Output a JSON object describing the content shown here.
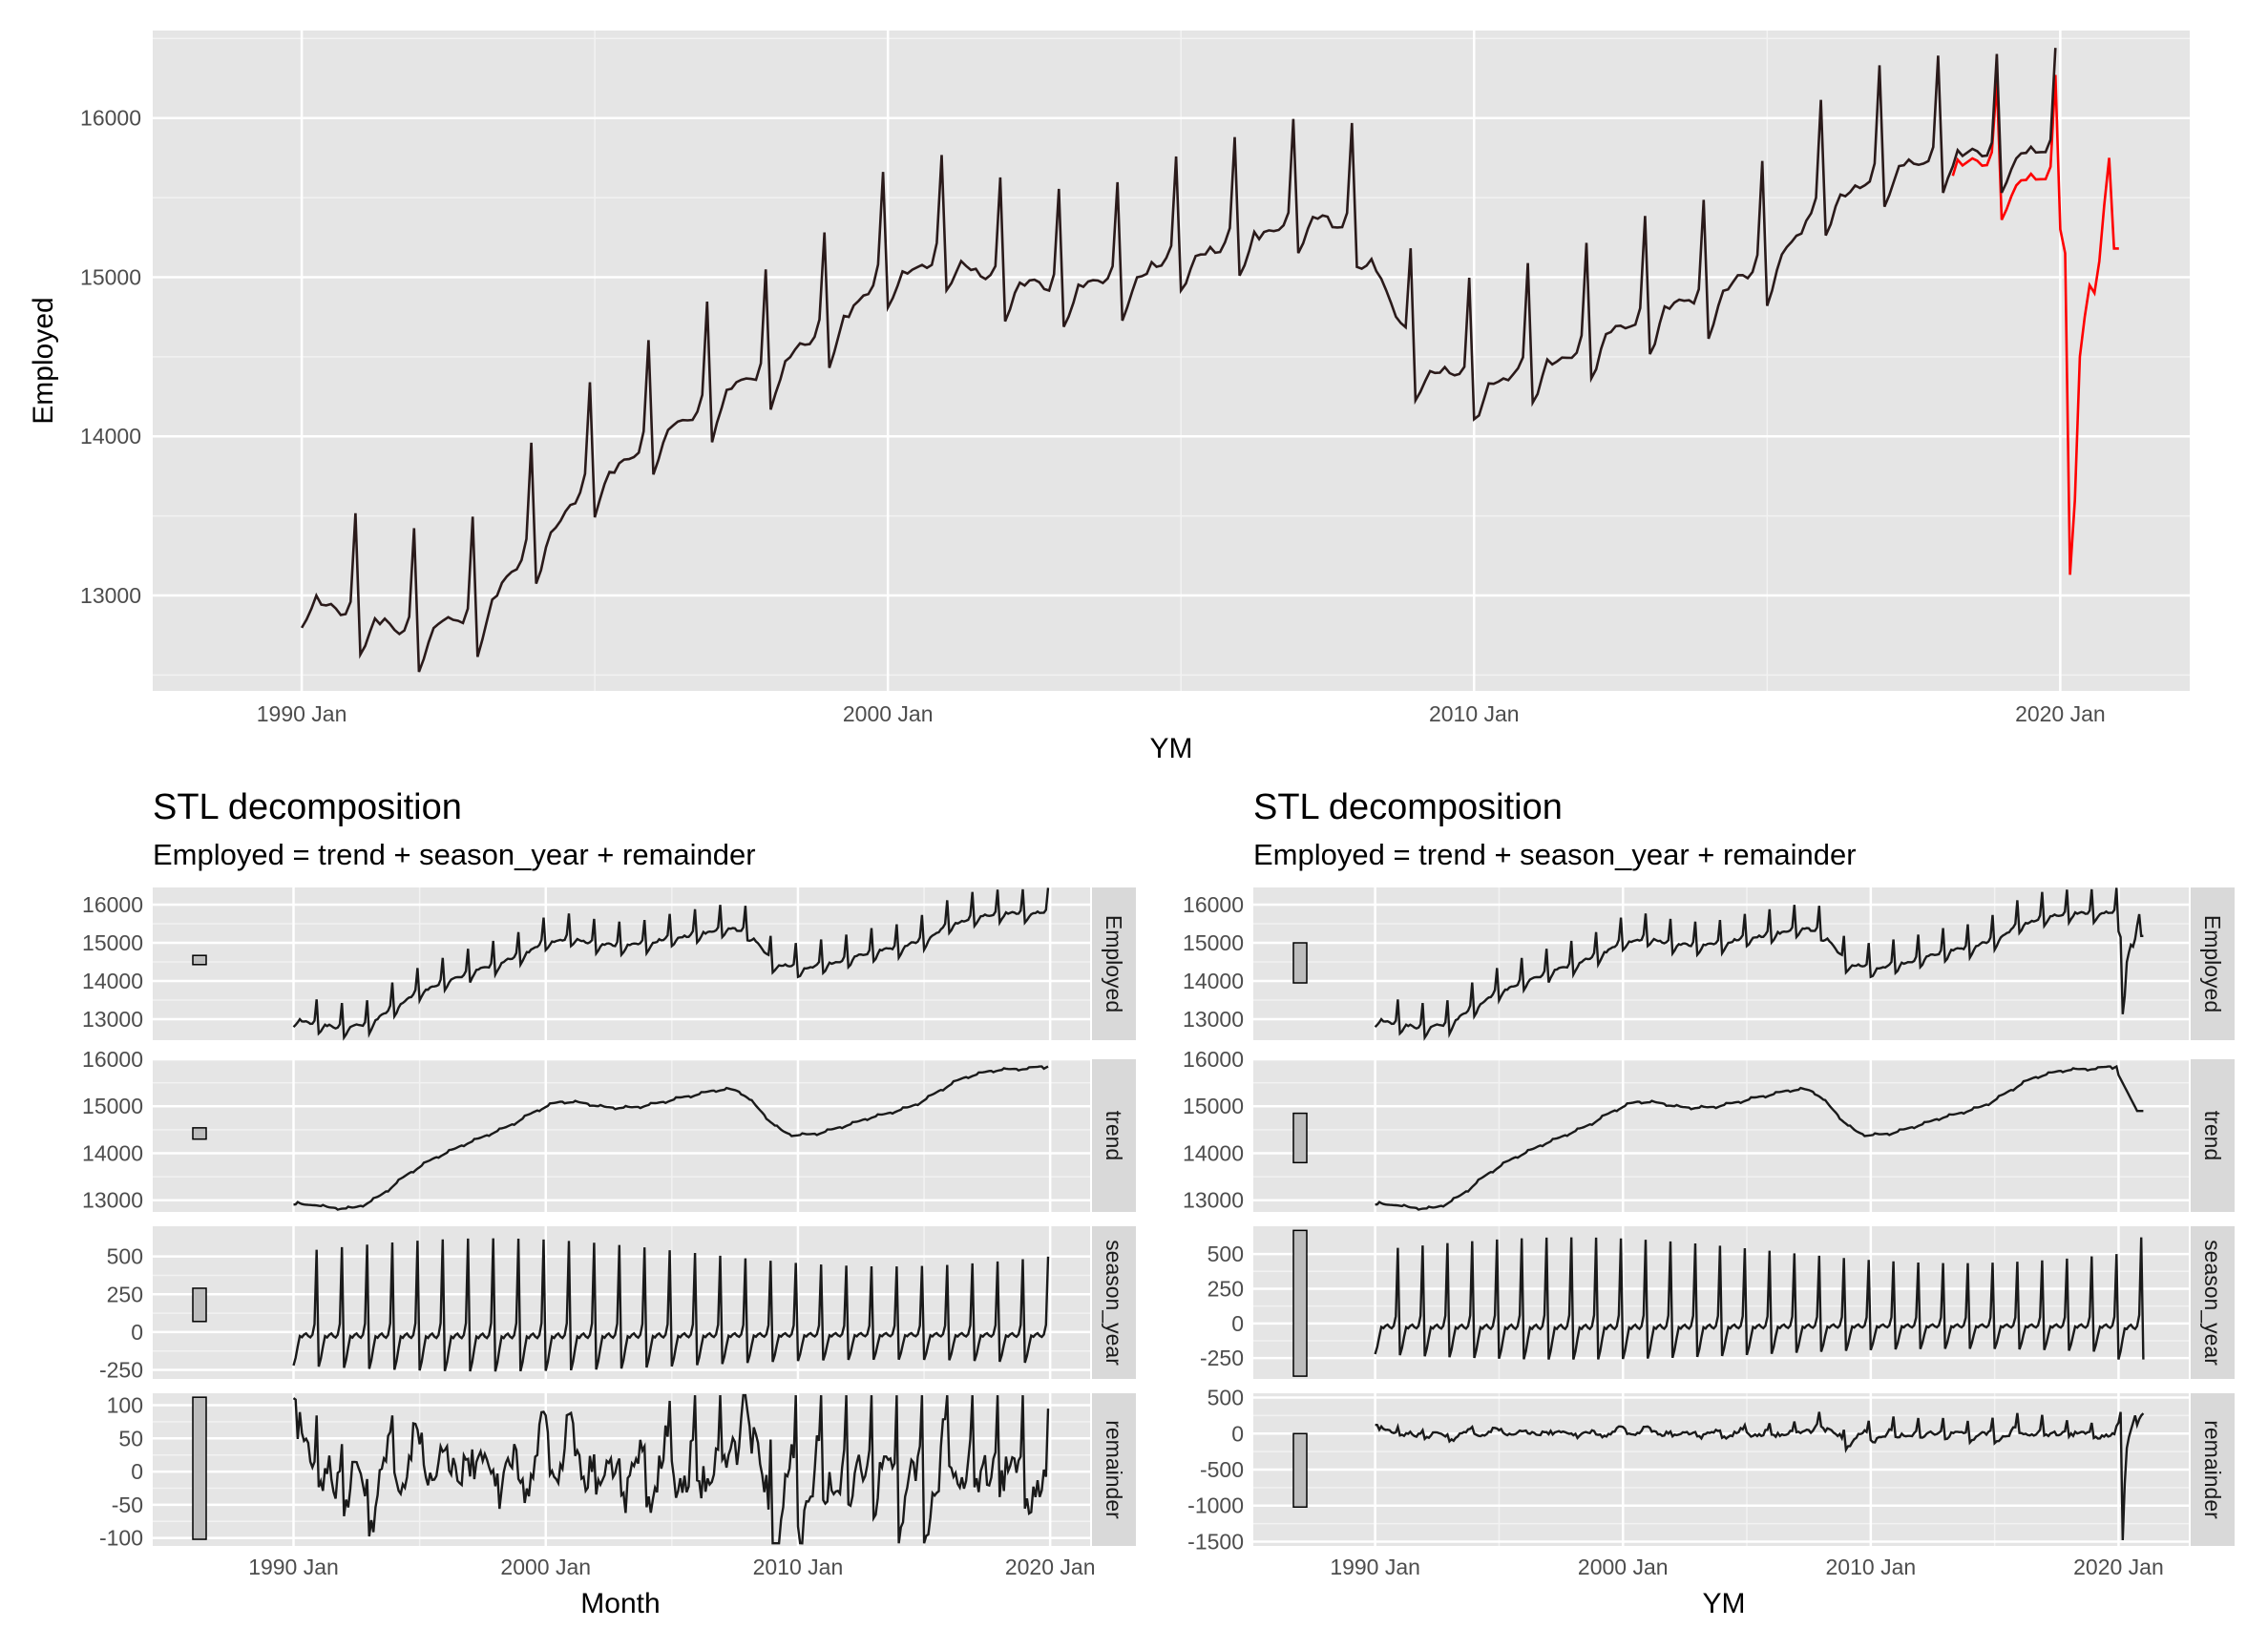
{
  "chart_data": [
    {
      "type": "line",
      "title": "",
      "xlabel": "YM",
      "ylabel": "Employed",
      "x_tick_labels": [
        "1990 Jan",
        "2000 Jan",
        "2010 Jan",
        "2020 Jan"
      ],
      "y_ticks": [
        13000,
        14000,
        15000,
        16000
      ],
      "y_tick_labels": [
        "13000",
        "14000",
        "15000",
        "16000"
      ],
      "ylim": [
        12400,
        16550
      ],
      "xlim": [
        "1987-06",
        "2022-03"
      ],
      "grid": true,
      "colors": {
        "panel_bg": "#e5e5e5",
        "black_series": "#2a1a1a",
        "red_series": "#ff0000",
        "text": "#4d4d4d"
      },
      "series": [
        {
          "color": "#2a1a1a",
          "x_start": "1990-01",
          "x_end": "2019-12",
          "data_ref": "employed_1990_2019"
        },
        {
          "color": "#ff0000",
          "x_start": "2018-03",
          "x_end": "2021-01",
          "data_ref": "employed_2018_2021"
        }
      ]
    },
    {
      "type": "line",
      "title": "STL decomposition",
      "subtitle": "Employed = trend + season_year + remainder",
      "xlabel": "Month",
      "x_tick_labels": [
        "1990 Jan",
        "2000 Jan",
        "2010 Jan",
        "2020 Jan"
      ],
      "x_range": [
        "1990-01",
        "2019-12"
      ],
      "facets": [
        {
          "strip": "Employed",
          "y_ticks": [
            13000,
            14000,
            15000,
            16000
          ],
          "y_tick_labels": [
            "13000",
            "14000",
            "15000",
            "16000"
          ],
          "ylim": [
            12450,
            16450
          ],
          "scale_bar": [
            14430,
            14670
          ]
        },
        {
          "strip": "trend",
          "y_ticks": [
            13000,
            14000,
            15000,
            16000
          ],
          "y_tick_labels": [
            "13000",
            "14000",
            "15000",
            "16000"
          ],
          "ylim": [
            12750,
            16000
          ],
          "scale_bar": [
            14300,
            14540
          ]
        },
        {
          "strip": "season_year",
          "y_ticks": [
            -250,
            0,
            250,
            500
          ],
          "y_tick_labels": [
            "-250",
            "0",
            "250",
            "500"
          ],
          "ylim": [
            -310,
            700
          ],
          "scale_bar": [
            70,
            290
          ]
        },
        {
          "strip": "remainder",
          "y_ticks": [
            -100,
            -50,
            0,
            50,
            100
          ],
          "y_tick_labels": [
            "-100",
            "-50",
            "0",
            "50",
            "100"
          ],
          "ylim": [
            -112,
            118
          ],
          "scale_bar": [
            -102,
            112
          ]
        }
      ]
    },
    {
      "type": "line",
      "title": "STL decomposition",
      "subtitle": "Employed = trend + season_year + remainder",
      "xlabel": "YM",
      "x_tick_labels": [
        "1990 Jan",
        "2000 Jan",
        "2010 Jan",
        "2020 Jan"
      ],
      "x_range": [
        "1990-01",
        "2021-01"
      ],
      "facets": [
        {
          "strip": "Employed",
          "y_ticks": [
            13000,
            14000,
            15000,
            16000
          ],
          "y_tick_labels": [
            "13000",
            "14000",
            "15000",
            "16000"
          ],
          "ylim": [
            12450,
            16450
          ],
          "scale_bar": [
            13950,
            15000
          ]
        },
        {
          "strip": "trend",
          "y_ticks": [
            13000,
            14000,
            15000,
            16000
          ],
          "y_tick_labels": [
            "13000",
            "14000",
            "15000",
            "16000"
          ],
          "ylim": [
            12750,
            16000
          ],
          "scale_bar": [
            13800,
            14850
          ]
        },
        {
          "strip": "season_year",
          "y_ticks": [
            -250,
            0,
            250,
            500
          ],
          "y_tick_labels": [
            "-250",
            "0",
            "250",
            "500"
          ],
          "ylim": [
            -400,
            700
          ],
          "scale_bar": [
            -380,
            670
          ]
        },
        {
          "strip": "remainder",
          "y_ticks": [
            -1500,
            -1000,
            -500,
            0,
            500
          ],
          "y_tick_labels": [
            "-1500",
            "-1000",
            "-500",
            "0",
            "500"
          ],
          "ylim": [
            -1560,
            560
          ],
          "scale_bar": [
            -1020,
            0
          ]
        }
      ]
    }
  ],
  "series_data": {
    "employed_pattern_note_free": true,
    "employed_year_levels": [
      [
        1990,
        13050
      ],
      [
        1991,
        12880
      ],
      [
        1992,
        12800
      ],
      [
        1993,
        12900
      ],
      [
        1994,
        13350
      ],
      [
        1995,
        13750
      ],
      [
        1996,
        14000
      ],
      [
        1997,
        14250
      ],
      [
        1998,
        14450
      ],
      [
        1999,
        14700
      ],
      [
        2000,
        15050
      ],
      [
        2001,
        15150
      ],
      [
        2002,
        15000
      ],
      [
        2003,
        14950
      ],
      [
        2004,
        15000
      ],
      [
        2005,
        15150
      ],
      [
        2006,
        15250
      ],
      [
        2007,
        15400
      ],
      [
        2008,
        15350
      ],
      [
        2009,
        14500
      ],
      [
        2010,
        14350
      ],
      [
        2011,
        14450
      ],
      [
        2012,
        14600
      ],
      [
        2013,
        14800
      ],
      [
        2014,
        14900
      ],
      [
        2015,
        15100
      ],
      [
        2016,
        15500
      ],
      [
        2017,
        15700
      ],
      [
        2018,
        15800
      ],
      [
        2019,
        15800
      ]
    ],
    "season_profile": [
      -260,
      -200,
      -110,
      -30,
      -40,
      -20,
      -10,
      -30,
      -40,
      -20,
      60,
      620
    ],
    "employed_2020_2021": [
      15300,
      15150,
      13130,
      13600,
      14500,
      14750,
      14950,
      14900,
      15100,
      15450,
      15750,
      15180,
      15180
    ]
  }
}
